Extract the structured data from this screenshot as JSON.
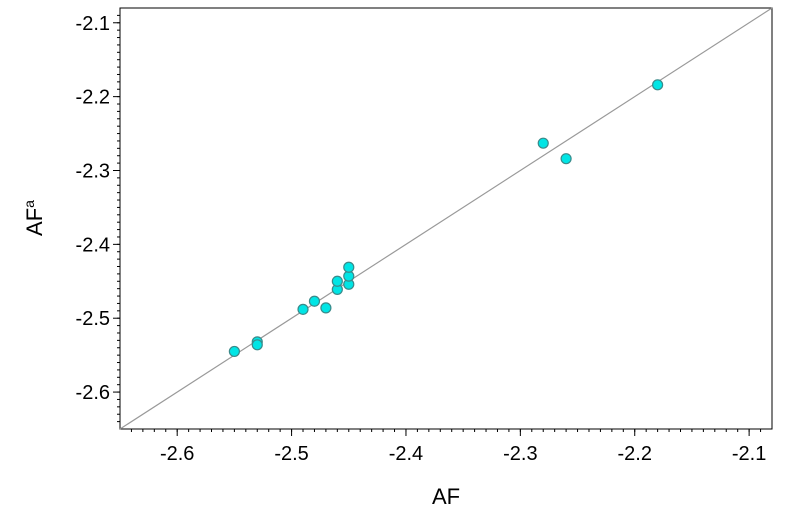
{
  "chart_data": {
    "type": "scatter",
    "title": "",
    "xlabel": "AF",
    "ylabel_base": "AF",
    "ylabel_sup": "a",
    "xlim": [
      -2.65,
      -2.08
    ],
    "ylim": [
      -2.65,
      -2.08
    ],
    "grid": false,
    "xticks": [
      -2.6,
      -2.5,
      -2.4,
      -2.3,
      -2.2,
      -2.1
    ],
    "yticks": [
      -2.1,
      -2.2,
      -2.3,
      -2.4,
      -2.5,
      -2.6
    ],
    "xtick_labels": [
      "-2.6",
      "-2.5",
      "-2.4",
      "-2.3",
      "-2.2",
      "-2.1"
    ],
    "ytick_labels": [
      "-2.1",
      "-2.2",
      "-2.3",
      "-2.4",
      "-2.5",
      "-2.6"
    ],
    "reference_line": {
      "type": "y=x",
      "color": "#999999"
    },
    "marker_color": "#00e5e5",
    "marker_edge_color": "#3a8a8a",
    "points": [
      {
        "x": -2.55,
        "y": -2.545
      },
      {
        "x": -2.53,
        "y": -2.532
      },
      {
        "x": -2.53,
        "y": -2.536
      },
      {
        "x": -2.49,
        "y": -2.488
      },
      {
        "x": -2.48,
        "y": -2.477
      },
      {
        "x": -2.47,
        "y": -2.486
      },
      {
        "x": -2.46,
        "y": -2.461
      },
      {
        "x": -2.46,
        "y": -2.45
      },
      {
        "x": -2.45,
        "y": -2.454
      },
      {
        "x": -2.45,
        "y": -2.443
      },
      {
        "x": -2.45,
        "y": -2.431
      },
      {
        "x": -2.28,
        "y": -2.263
      },
      {
        "x": -2.26,
        "y": -2.284
      },
      {
        "x": -2.18,
        "y": -2.184
      }
    ]
  }
}
